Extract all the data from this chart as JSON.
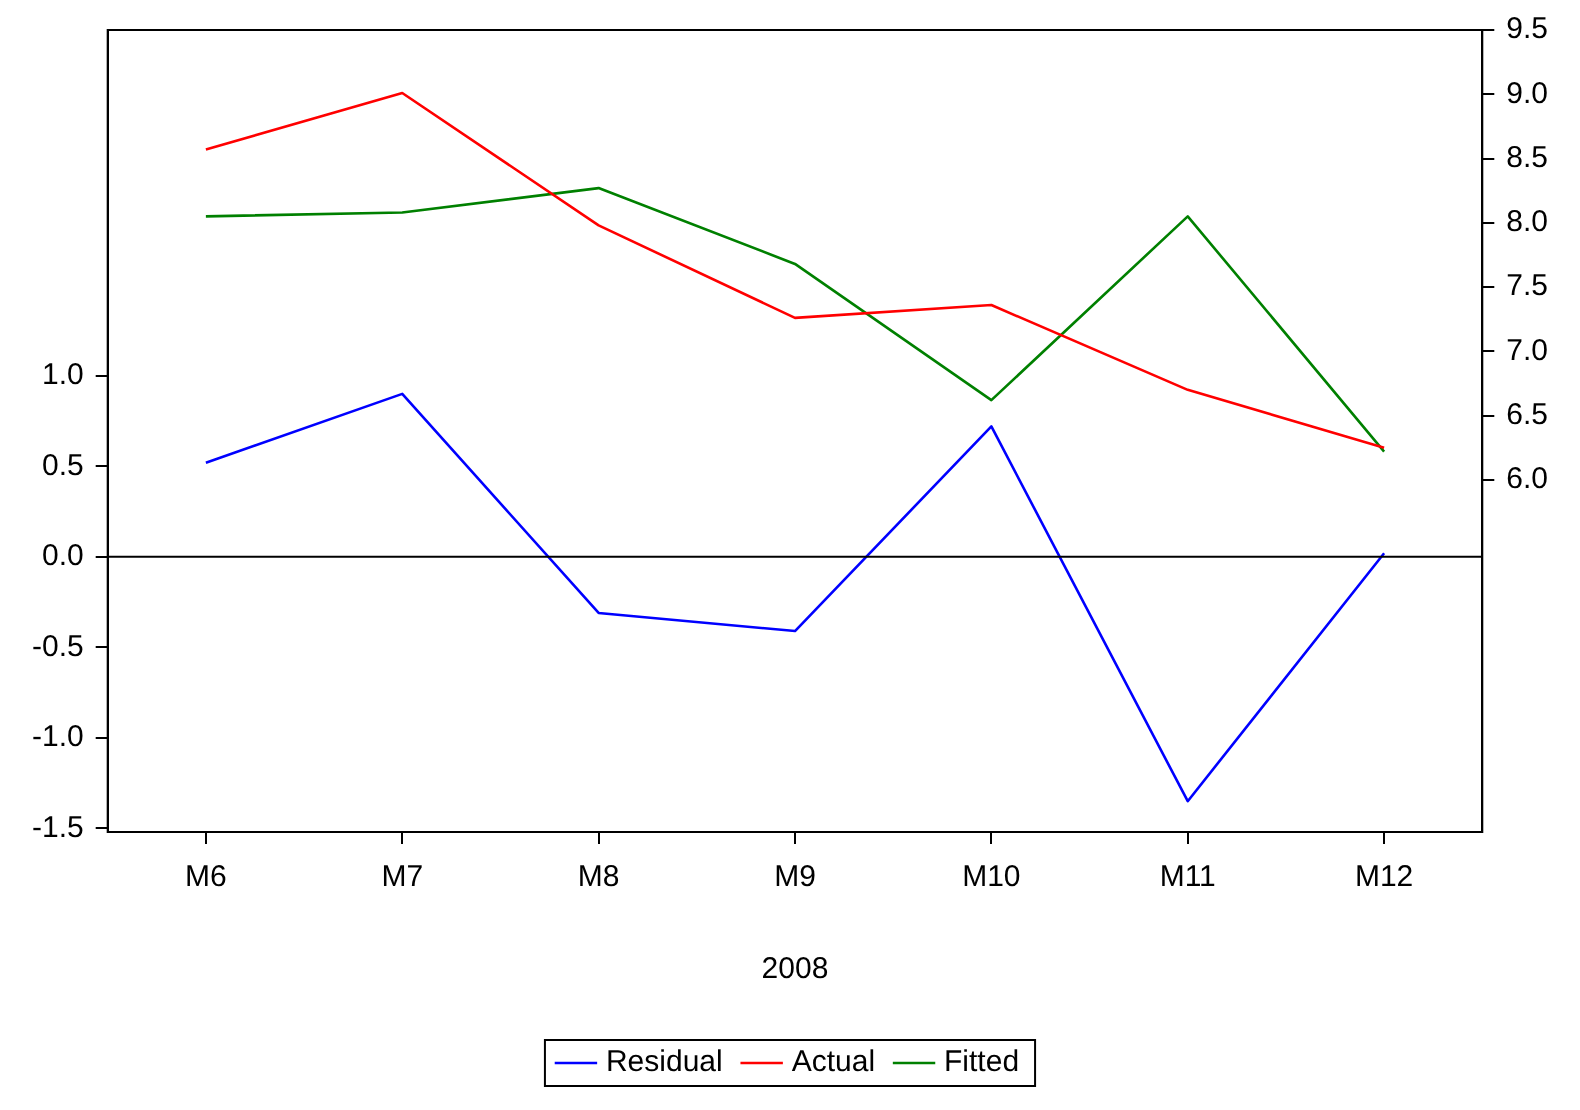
{
  "chart_data": {
    "type": "line",
    "xlabel": "2008",
    "categories": [
      "M6",
      "M7",
      "M8",
      "M9",
      "M10",
      "M11",
      "M12"
    ],
    "series": [
      {
        "name": "Residual",
        "color": "#0000ff",
        "values": [
          0.52,
          0.9,
          -0.31,
          -0.41,
          0.72,
          -1.35,
          0.02
        ]
      },
      {
        "name": "Actual",
        "color": "#ff0000",
        "axis": "y2",
        "values": [
          8.57,
          9.01,
          7.98,
          7.26,
          7.36,
          6.7,
          6.25
        ]
      },
      {
        "name": "Fitted",
        "color": "#008000",
        "axis": "y2",
        "values": [
          8.05,
          8.08,
          8.27,
          7.68,
          6.62,
          8.05,
          6.22
        ]
      }
    ],
    "ylim": [
      -1.52,
      2.91
    ],
    "yticks": [
      -1.5,
      {
        "value": -1,
        "label": "-1.0"
      },
      -0.5,
      {
        "value": 0,
        "label": "0.0"
      },
      0.5,
      {
        "value": 1,
        "label": "1.0"
      }
    ],
    "y2lim": [
      3.26,
      9.5
    ],
    "y2ticks": [
      {
        "value": 6,
        "label": "6.0"
      },
      6.5,
      {
        "value": 7,
        "label": "7.0"
      },
      7.5,
      {
        "value": 8,
        "label": "8.0"
      },
      8.5,
      {
        "value": 9,
        "label": "9.0"
      },
      9.5
    ],
    "ref_lines": [
      {
        "axis": "y",
        "value": 0,
        "color": "#000000"
      }
    ],
    "grid": false,
    "legend": "bottom",
    "marker": "none",
    "line_style": "solid"
  }
}
